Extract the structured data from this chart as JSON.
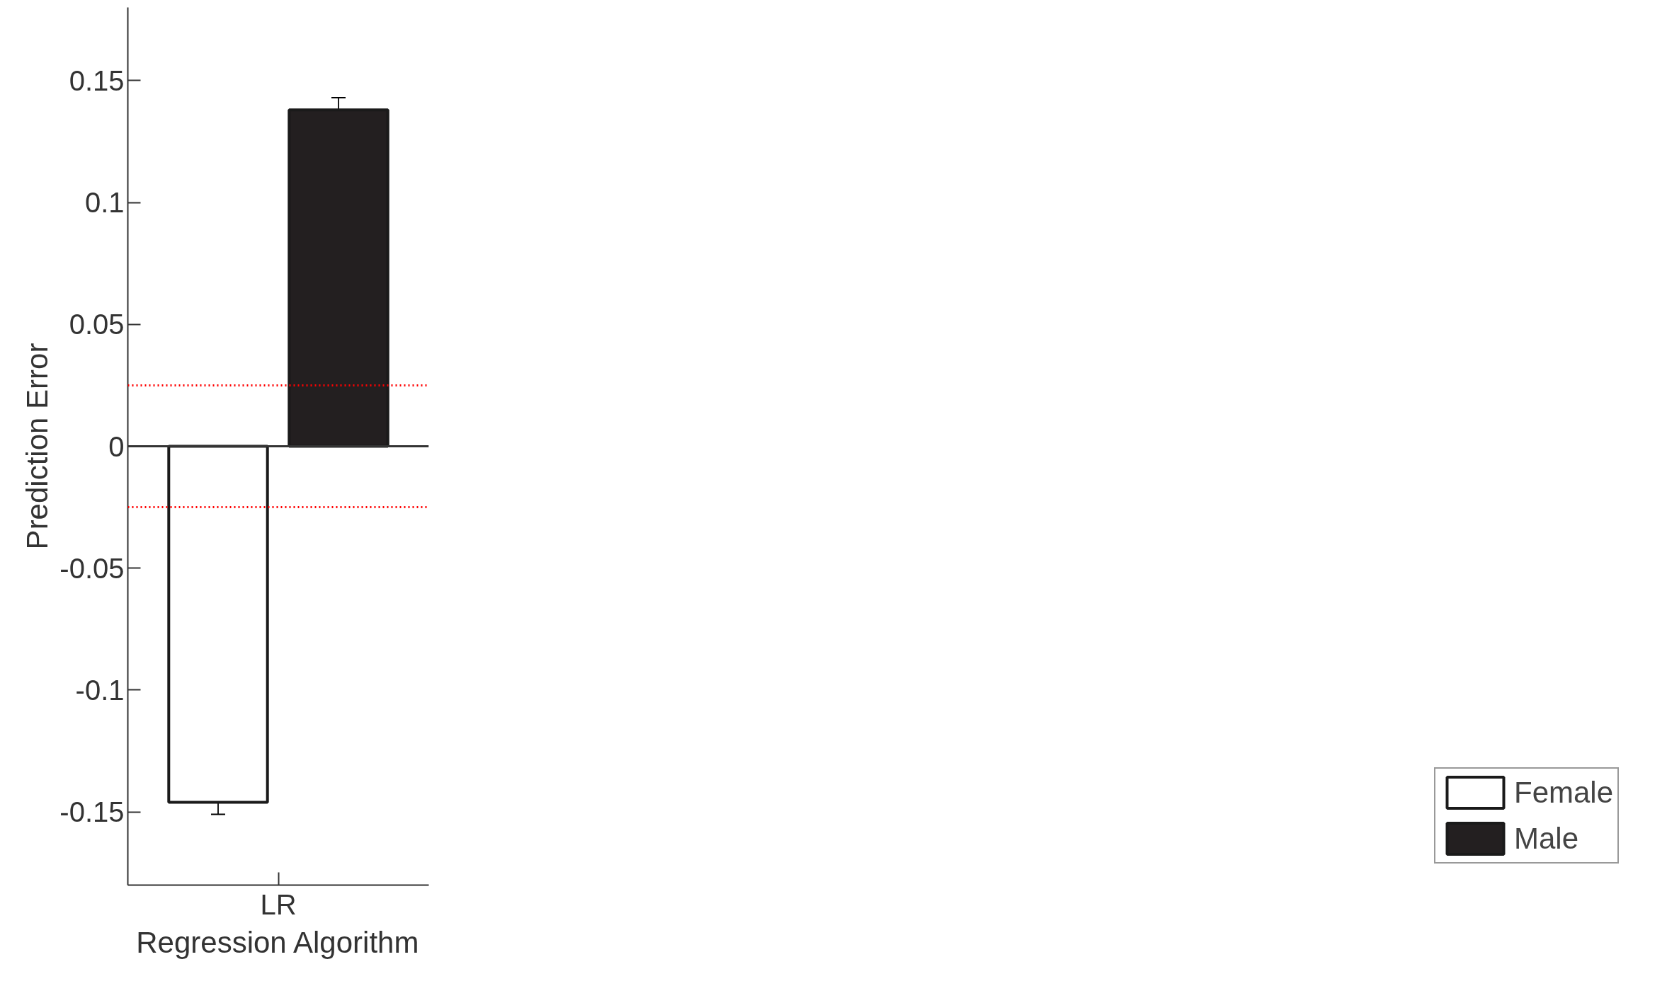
{
  "chart_data": {
    "type": "bar",
    "xlabel": "Regression Algorithm",
    "ylabel": "Prediction Error",
    "categories": [
      "LR"
    ],
    "series": [
      {
        "name": "Female",
        "color": "#ffffff",
        "values": [
          -0.146
        ],
        "errors": [
          0.005
        ]
      },
      {
        "name": "Male",
        "color": "#231f20",
        "values": [
          0.138
        ],
        "errors": [
          0.005
        ]
      }
    ],
    "ylim": [
      -0.18,
      0.18
    ],
    "yticks": [
      {
        "value": -0.15,
        "label": "-0.15"
      },
      {
        "value": -0.1,
        "label": "-0.1"
      },
      {
        "value": -0.05,
        "label": "-0.05"
      },
      0,
      {
        "value": 0.05,
        "label": "0.05"
      },
      {
        "value": 0.1,
        "label": "0.1"
      },
      {
        "value": 0.15,
        "label": "0.15"
      }
    ],
    "ref_lines": [
      {
        "axis": "y",
        "value": 0.025,
        "color": "#ff0000",
        "line_style": "dotted"
      },
      {
        "axis": "y",
        "value": -0.025,
        "color": "#ff0000",
        "line_style": "dotted"
      },
      {
        "axis": "y",
        "value": 0,
        "color": "#333333",
        "line_style": "solid"
      }
    ],
    "grid": false,
    "legend": "bottom right"
  }
}
